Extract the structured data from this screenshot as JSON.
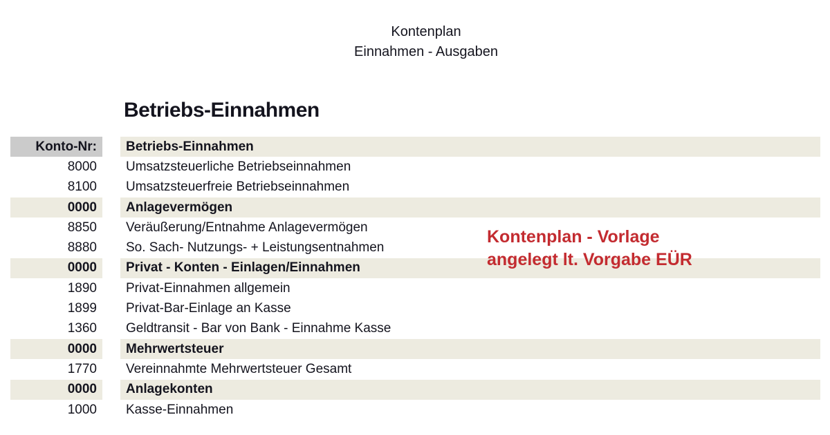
{
  "page": {
    "title_line1": "Kontenplan",
    "title_line2": "Einnahmen - Ausgaben",
    "section_heading": "Betriebs-Einnahmen"
  },
  "table": {
    "header": {
      "konto": "Konto-Nr:",
      "name": "Betriebs-Einnahmen"
    },
    "rows": [
      {
        "konto": "8000",
        "name": "Umsatzsteuerliche Betriebseinnahmen",
        "type": "normal"
      },
      {
        "konto": "8100",
        "name": "Umsatzsteuerfreie Betriebseinnahmen",
        "type": "normal"
      },
      {
        "konto": "0000",
        "name": "Anlagevermögen",
        "type": "section"
      },
      {
        "konto": "8850",
        "name": "Veräußerung/Entnahme Anlagevermögen",
        "type": "normal"
      },
      {
        "konto": "8880",
        "name": "So. Sach- Nutzungs- + Leistungsentnahmen",
        "type": "normal"
      },
      {
        "konto": "0000",
        "name": "Privat - Konten - Einlagen/Einnahmen",
        "type": "section"
      },
      {
        "konto": "1890",
        "name": "Privat-Einnahmen allgemein",
        "type": "normal"
      },
      {
        "konto": "1899",
        "name": "Privat-Bar-Einlage an Kasse",
        "type": "normal"
      },
      {
        "konto": "1360",
        "name": "Geldtransit - Bar von Bank - Einnahme Kasse",
        "type": "normal"
      },
      {
        "konto": "0000",
        "name": "Mehrwertsteuer",
        "type": "section"
      },
      {
        "konto": "1770",
        "name": "Vereinnahmte Mehrwertsteuer Gesamt",
        "type": "normal"
      },
      {
        "konto": "0000",
        "name": "Anlagekonten",
        "type": "section"
      },
      {
        "konto": "1000",
        "name": "Kasse-Einnahmen",
        "type": "normal"
      }
    ]
  },
  "annotation": {
    "line1": "Kontenplan - Vorlage",
    "line2": "angelegt lt. Vorgabe EÜR"
  },
  "colors": {
    "stripe": "#edebe0",
    "header_cell": "#cbcbcb",
    "text": "#14141e",
    "accent": "#c32b30"
  }
}
